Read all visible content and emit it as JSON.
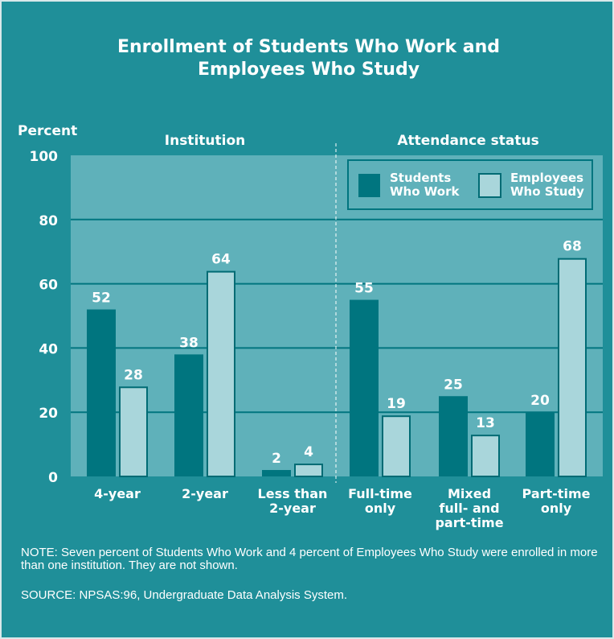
{
  "title_line1": "Enrollment of Students Who Work and",
  "title_line2": "Employees Who Study",
  "note": "NOTE: Seven percent of Students Who Work and 4 percent of Employees Who Study were enrolled in more than one institution. They are not shown.",
  "source": "SOURCE: NPSAS:96, Undergraduate Data Analysis System.",
  "colors": {
    "background": "#1f8f99",
    "plot_area": "#5fb1ba",
    "students": "#00757f",
    "employees": "#a9d6db",
    "outline": "#006b74"
  },
  "chart_data": {
    "type": "bar",
    "ylabel": "Percent",
    "ylim": [
      0,
      100
    ],
    "yticks": [
      0,
      20,
      40,
      60,
      80,
      100
    ],
    "grid": true,
    "legend_position": "top-right",
    "groups": [
      {
        "label": "Institution",
        "categories": [
          0,
          1,
          2
        ]
      },
      {
        "label": "Attendance status",
        "categories": [
          3,
          4,
          5
        ]
      }
    ],
    "categories": [
      [
        "4-year"
      ],
      [
        "2-year"
      ],
      [
        "Less than",
        "2-year"
      ],
      [
        "Full-time",
        "only"
      ],
      [
        "Mixed",
        "full- and",
        "part-time"
      ],
      [
        "Part-time",
        "only"
      ]
    ],
    "series": [
      {
        "name": "Students Who Work",
        "legend_lines": [
          "Students",
          "Who Work"
        ],
        "values": [
          52,
          38,
          2,
          55,
          25,
          20
        ]
      },
      {
        "name": "Employees Who Study",
        "legend_lines": [
          "Employees",
          "Who Study"
        ],
        "values": [
          28,
          64,
          4,
          19,
          13,
          68
        ]
      }
    ]
  }
}
